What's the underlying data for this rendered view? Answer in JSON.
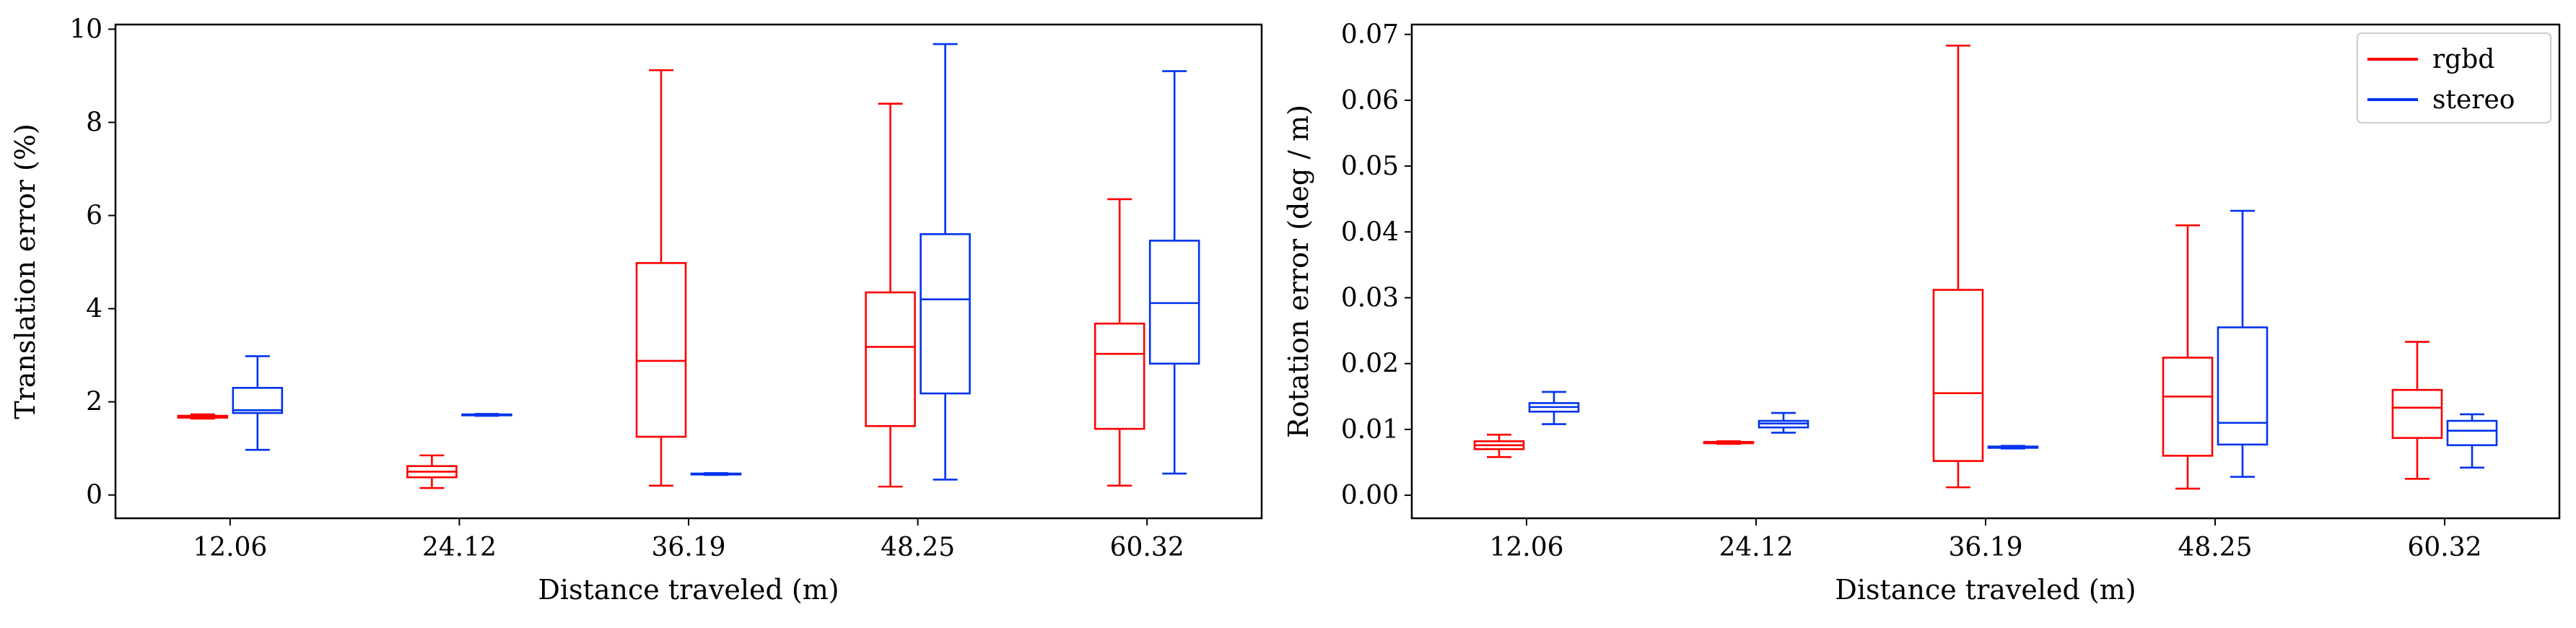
{
  "chart_data": [
    {
      "type": "box",
      "xlabel": "Distance traveled (m)",
      "ylabel": "Translation error (%)",
      "categories": [
        "12.06",
        "24.12",
        "36.19",
        "48.25",
        "60.32"
      ],
      "ylim": [
        -0.5,
        10.1
      ],
      "yticks": [
        0,
        2,
        4,
        6,
        8,
        10
      ],
      "grid": false,
      "series": [
        {
          "name": "rgbd",
          "color": "#ff0000",
          "boxes": [
            {
              "whislo": 1.64,
              "q1": 1.66,
              "med": 1.68,
              "q3": 1.7,
              "whishi": 1.73
            },
            {
              "whislo": 0.15,
              "q1": 0.38,
              "med": 0.5,
              "q3": 0.62,
              "whishi": 0.85
            },
            {
              "whislo": 0.2,
              "q1": 1.25,
              "med": 2.88,
              "q3": 4.98,
              "whishi": 9.12
            },
            {
              "whislo": 0.18,
              "q1": 1.48,
              "med": 3.18,
              "q3": 4.35,
              "whishi": 8.4
            },
            {
              "whislo": 0.2,
              "q1": 1.42,
              "med": 3.03,
              "q3": 3.68,
              "whishi": 6.35
            }
          ]
        },
        {
          "name": "stereo",
          "color": "#0033ee",
          "boxes": [
            {
              "whislo": 0.97,
              "q1": 1.76,
              "med": 1.82,
              "q3": 2.3,
              "whishi": 2.98
            },
            {
              "whislo": 1.7,
              "q1": 1.71,
              "med": 1.72,
              "q3": 1.73,
              "whishi": 1.74
            },
            {
              "whislo": 0.43,
              "q1": 0.44,
              "med": 0.45,
              "q3": 0.46,
              "whishi": 0.47
            },
            {
              "whislo": 0.33,
              "q1": 2.18,
              "med": 4.2,
              "q3": 5.6,
              "whishi": 9.68
            },
            {
              "whislo": 0.46,
              "q1": 2.82,
              "med": 4.12,
              "q3": 5.46,
              "whishi": 9.1
            }
          ]
        }
      ]
    },
    {
      "type": "box",
      "xlabel": "Distance traveled (m)",
      "ylabel": "Rotation error (deg / m)",
      "categories": [
        "12.06",
        "24.12",
        "36.19",
        "48.25",
        "60.32"
      ],
      "ylim": [
        -0.0035,
        0.0715
      ],
      "yticks": [
        "0.00",
        "0.01",
        "0.02",
        "0.03",
        "0.04",
        "0.05",
        "0.06",
        "0.07"
      ],
      "grid": false,
      "legend": {
        "position": "top-right",
        "entries": [
          "rgbd",
          "stereo"
        ]
      },
      "series": [
        {
          "name": "rgbd",
          "color": "#ff0000",
          "boxes": [
            {
              "whislo": 0.0058,
              "q1": 0.007,
              "med": 0.0076,
              "q3": 0.0082,
              "whishi": 0.0092
            },
            {
              "whislo": 0.0078,
              "q1": 0.0079,
              "med": 0.008,
              "q3": 0.0081,
              "whishi": 0.0082
            },
            {
              "whislo": 0.0012,
              "q1": 0.0052,
              "med": 0.0155,
              "q3": 0.0312,
              "whishi": 0.0683
            },
            {
              "whislo": 0.001,
              "q1": 0.006,
              "med": 0.015,
              "q3": 0.0209,
              "whishi": 0.041
            },
            {
              "whislo": 0.0025,
              "q1": 0.0087,
              "med": 0.0133,
              "q3": 0.016,
              "whishi": 0.0233
            }
          ]
        },
        {
          "name": "stereo",
          "color": "#0033ee",
          "boxes": [
            {
              "whislo": 0.0108,
              "q1": 0.0127,
              "med": 0.0134,
              "q3": 0.014,
              "whishi": 0.0157
            },
            {
              "whislo": 0.0095,
              "q1": 0.0103,
              "med": 0.0109,
              "q3": 0.0113,
              "whishi": 0.0125
            },
            {
              "whislo": 0.0071,
              "q1": 0.0072,
              "med": 0.0073,
              "q3": 0.0074,
              "whishi": 0.0075
            },
            {
              "whislo": 0.0028,
              "q1": 0.0077,
              "med": 0.011,
              "q3": 0.0255,
              "whishi": 0.0432
            },
            {
              "whislo": 0.0042,
              "q1": 0.0076,
              "med": 0.0098,
              "q3": 0.0113,
              "whishi": 0.0123
            }
          ]
        }
      ]
    }
  ]
}
